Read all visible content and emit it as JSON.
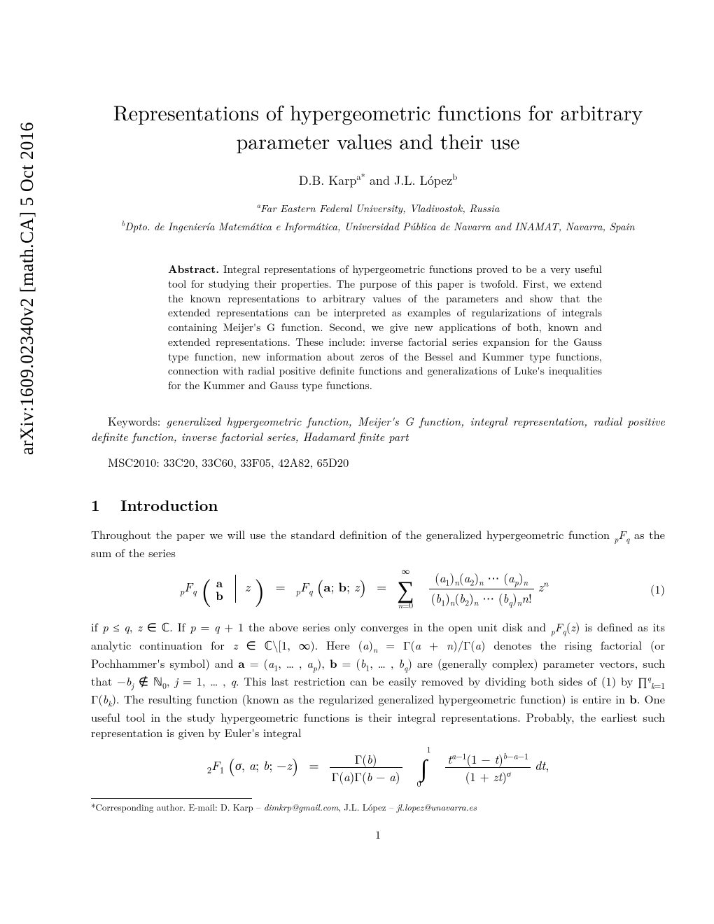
{
  "arxiv_stamp": "arXiv:1609.02340v2  [math.CA]  5 Oct 2016",
  "title_line1": "Representations of hypergeometric functions for arbitrary",
  "title_line2": "parameter values and their use",
  "authors_html": "D.B. Karp<sup>a*</sup> and J.L. López<sup>b</sup>",
  "affil_a_html": "<sup>a</sup>Far Eastern Federal University, Vladivostok, Russia",
  "affil_b_html": "<sup>b</sup>Dpto. de Ingeniería Matemática e Informática, Universidad Pública de Navarra and INAMAT, Navarra, Spain",
  "abstract_label": "Abstract.",
  "abstract_body": " Integral representations of hypergeometric functions proved to be a very useful tool for studying their properties. The purpose of this paper is twofold. First, we extend the known representations to arbitrary values of the parameters and show that the extended representations can be interpreted as examples of regularizations of integrals containing Meijer's G function. Second, we give new applications of both, known and extended representations. These include: inverse factorial series expansion for the Gauss type function, new information about zeros of the Bessel and Kummer type functions, connection with radial positive definite functions and generalizations of Luke's inequalities for the Kummer and Gauss type functions.",
  "keywords_label": "Keywords:",
  "keywords_body": " generalized hypergeometric function, Meijer's G function, integral representation, radial positive definite function, inverse factorial series, Hadamard finite part",
  "msc": "MSC2010: 33C20, 33C60, 33F05, 42A82, 65D20",
  "section_number": "1",
  "section_title": "Introduction",
  "para1_html": "Throughout the paper we will use the standard definition of the generalized hypergeometric function <sub><i>p</i></sub><i>F</i><sub><i>q</i></sub> as the sum of the series",
  "eq1_number": "(1)",
  "para2_html": "if <i>p</i> ≤ <i>q</i>, <i>z</i> ∈ ℂ. If <i>p</i> = <i>q</i> + 1 the above series only converges in the open unit disk and <sub><i>p</i></sub><i>F</i><sub><i>q</i></sub>(<i>z</i>) is defined as its analytic continuation for <i>z</i> ∈ ℂ\\[1, ∞). Here (<i>a</i>)<sub><i>n</i></sub> = Γ(<i>a</i> + <i>n</i>)/Γ(<i>a</i>) denotes the rising factorial (or Pochhammer's symbol) and <b>a</b> = (<i>a</i><sub>1</sub>, … , <i>a</i><sub><i>p</i></sub>), <b>b</b> = (<i>b</i><sub>1</sub>, … , <i>b</i><sub><i>q</i></sub>) are (generally complex) parameter vectors, such that −<i>b</i><sub><i>j</i></sub> ∉ ℕ<sub>0</sub>, <i>j</i> = 1, … , <i>q</i>. This last restriction can be easily removed by dividing both sides of (1) by ∏<sup><i>q</i></sup><sub><i>k</i>=1</sub> Γ(<i>b</i><sub><i>k</i></sub>). The resulting function (known as the regularized generalized hypergeometric function) is entire in <b>b</b>. One useful tool in the study hypergeometric functions is their integral representations. Probably, the earliest such representation is given by Euler's integral",
  "footnote_html": "*Corresponding author. E-mail: D. Karp – <span class=\"fn-it\">dimkrp@gmail.com</span>, J.L. López – <span class=\"fn-it\">jl.lopez@unavarra.es</span>",
  "page_number": "1"
}
